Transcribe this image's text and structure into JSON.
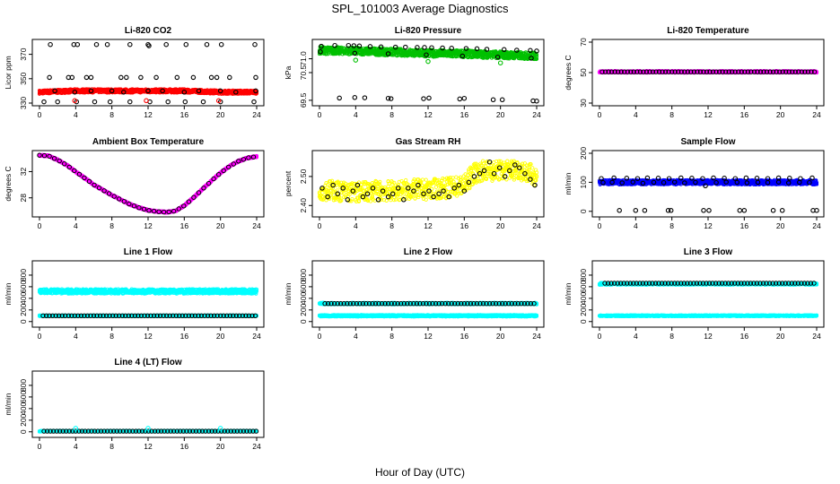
{
  "figure": {
    "title": "SPL_101003  Average Diagnostics",
    "xlabel": "Hour of Day (UTC)"
  },
  "chart_data": [
    {
      "id": "co2",
      "type": "scatter",
      "title": "Li-820 CO2",
      "ylabel": "Licor ppm",
      "xlim": [
        0,
        24
      ],
      "ylim": [
        330,
        380
      ],
      "xticks": [
        0,
        4,
        8,
        12,
        16,
        20,
        24
      ],
      "yticks": [
        330,
        350,
        370
      ],
      "series": [
        {
          "kind": "band",
          "color": "#ff0000",
          "x": [
            0,
            4,
            8,
            12,
            16,
            20,
            24
          ],
          "y": [
            339,
            340,
            340,
            340,
            340,
            339,
            339
          ],
          "spread": 1.5
        },
        {
          "kind": "points",
          "color": "#000000",
          "x": [
            1.2,
            3.8,
            4.2,
            6.3,
            7.5,
            10,
            12,
            12.1,
            14,
            16.2,
            18.5,
            20.1,
            23.8
          ],
          "y": [
            378,
            378,
            378,
            378,
            378,
            378,
            378,
            377,
            378,
            378,
            378,
            378,
            378
          ]
        },
        {
          "kind": "points",
          "color": "#000000",
          "x": [
            1.1,
            3.2,
            3.6,
            5.2,
            5.7,
            9.0,
            9.6,
            11.2,
            12.9,
            15.2,
            17.0,
            19.0,
            19.6,
            21.0,
            23.9
          ],
          "y": [
            351,
            351,
            351,
            351,
            351,
            351,
            351,
            351,
            351,
            351,
            351,
            351,
            351,
            351,
            351
          ]
        },
        {
          "kind": "points",
          "color": "#000000",
          "x": [
            0.5,
            2.0,
            4.1,
            6.1,
            7.8,
            10.0,
            12.2,
            14.2,
            16.1,
            18.1,
            20.0,
            23.7
          ],
          "y": [
            331,
            331,
            331,
            331,
            331,
            331,
            331,
            331,
            331,
            331,
            331,
            331
          ]
        },
        {
          "kind": "points",
          "color": "#000000",
          "x": [
            1.7,
            3.9,
            5.7,
            8.0,
            9.3,
            12.0,
            13.6,
            16.0,
            17.6,
            20.0,
            21.7,
            23.9
          ],
          "y": [
            340,
            339,
            340,
            340,
            339,
            340,
            340,
            339,
            340,
            340,
            339,
            340
          ]
        },
        {
          "kind": "points",
          "color": "#ff0000",
          "x": [
            3.9,
            11.8,
            19.8
          ],
          "y": [
            332,
            332,
            332
          ]
        }
      ]
    },
    {
      "id": "pressure",
      "type": "scatter",
      "title": "Li-820 Pressure",
      "ylabel": "kPa",
      "xlim": [
        0,
        24
      ],
      "ylim": [
        69.4,
        71.6
      ],
      "xticks": [
        0,
        4,
        8,
        12,
        16,
        20,
        24
      ],
      "yticks": [
        69.5,
        70.5,
        71.0
      ],
      "series": [
        {
          "kind": "band",
          "color": "#00c000",
          "x": [
            0,
            4,
            8,
            12,
            16,
            20,
            24
          ],
          "y": [
            71.3,
            71.28,
            71.24,
            71.2,
            71.18,
            71.14,
            71.1
          ],
          "spread": 0.13
        },
        {
          "kind": "points",
          "color": "#000000",
          "x": [
            0.2,
            1.7,
            3.2,
            3.8,
            4.4,
            5.6,
            6.8,
            8.4,
            9.5,
            10.8,
            11.6,
            12.4,
            13.6,
            14.6,
            16.2,
            17.4,
            18.5,
            20.4,
            21.8,
            23.3,
            24
          ],
          "y": [
            71.45,
            71.48,
            71.48,
            71.47,
            71.46,
            71.44,
            71.43,
            71.42,
            71.42,
            71.41,
            71.41,
            71.4,
            71.39,
            71.38,
            71.37,
            71.36,
            71.34,
            71.33,
            71.31,
            71.3,
            71.28
          ]
        },
        {
          "kind": "points",
          "color": "#000000",
          "x": [
            0.1,
            3.9,
            7.6,
            11.8,
            15.8,
            19.7,
            23.4
          ],
          "y": [
            71.25,
            71.2,
            71.18,
            71.14,
            71.1,
            71.06,
            71.02
          ]
        },
        {
          "kind": "points",
          "color": "#000000",
          "x": [
            2.2,
            3.9,
            5.0,
            7.6,
            7.9,
            11.5,
            12.1,
            15.5,
            16.0,
            19.2,
            20.2,
            23.6,
            24
          ],
          "y": [
            69.58,
            69.6,
            69.59,
            69.57,
            69.56,
            69.56,
            69.58,
            69.55,
            69.57,
            69.52,
            69.52,
            69.48,
            69.47
          ]
        },
        {
          "kind": "points",
          "color": "#00c000",
          "x": [
            4.0,
            12.0,
            20.0
          ],
          "y": [
            70.95,
            70.9,
            70.85
          ]
        }
      ]
    },
    {
      "id": "temperature",
      "type": "scatter",
      "title": "Li-820 Temperature",
      "ylabel": "degrees C",
      "xlim": [
        0,
        24
      ],
      "ylim": [
        30,
        70
      ],
      "xticks": [
        0,
        4,
        8,
        12,
        16,
        20,
        24
      ],
      "yticks": [
        30,
        50,
        70
      ],
      "series": [
        {
          "kind": "band",
          "color": "#ff00ff",
          "x": [
            0,
            24
          ],
          "y": [
            50.5,
            50.5
          ],
          "spread": 0.6
        },
        {
          "kind": "dense",
          "color": "#000000",
          "x0": 0.3,
          "x1": 24,
          "step": 0.35,
          "y": [
            50.5
          ]
        }
      ]
    },
    {
      "id": "ambient",
      "type": "scatter",
      "title": "Ambient Box Temperature",
      "ylabel": "degrees C",
      "xlim": [
        0,
        24
      ],
      "ylim": [
        25.5,
        34.8
      ],
      "xticks": [
        0,
        4,
        8,
        12,
        16,
        20,
        24
      ],
      "yticks": [
        28,
        32
      ],
      "series": [
        {
          "kind": "band",
          "color": "#ff00ff",
          "x": [
            0,
            1,
            2,
            3,
            4,
            5,
            6,
            7,
            8,
            9,
            10,
            11,
            12,
            13,
            14,
            15,
            16,
            17,
            18,
            19,
            20,
            21,
            22,
            23,
            24
          ],
          "y": [
            34.5,
            34.4,
            33.8,
            33.0,
            32.0,
            31.0,
            30.0,
            29.2,
            28.4,
            27.7,
            27.0,
            26.5,
            26.1,
            25.9,
            25.8,
            26.0,
            26.8,
            28.0,
            29.3,
            30.6,
            31.8,
            32.8,
            33.6,
            34.1,
            34.3
          ],
          "spread": 0.12
        },
        {
          "kind": "curvepts",
          "color": "#000000",
          "x": [
            0,
            1,
            2,
            3,
            4,
            5,
            6,
            7,
            8,
            9,
            10,
            11,
            12,
            13,
            14,
            15,
            16,
            17,
            18,
            19,
            20,
            21,
            22,
            23,
            24
          ],
          "y": [
            34.5,
            34.4,
            33.8,
            33.0,
            32.0,
            31.0,
            30.0,
            29.2,
            28.4,
            27.7,
            27.0,
            26.5,
            26.1,
            25.9,
            25.8,
            26.0,
            26.8,
            28.0,
            29.3,
            30.6,
            31.8,
            32.8,
            33.6,
            34.1,
            34.3
          ],
          "step": 0.55
        }
      ]
    },
    {
      "id": "rh",
      "type": "scatter",
      "title": "Gas Stream RH",
      "ylabel": "percent",
      "xlim": [
        0,
        24
      ],
      "ylim": [
        2.37,
        2.58
      ],
      "xticks": [
        0,
        4,
        8,
        12,
        16,
        20,
        24
      ],
      "yticks": [
        2.4,
        2.5
      ],
      "series": [
        {
          "kind": "noisy",
          "color": "#ffff00",
          "x": [
            0,
            2,
            4,
            6,
            8,
            10,
            12,
            14,
            16,
            17,
            18,
            20,
            22,
            24
          ],
          "y": [
            2.455,
            2.45,
            2.445,
            2.45,
            2.45,
            2.455,
            2.455,
            2.46,
            2.47,
            2.51,
            2.52,
            2.52,
            2.525,
            2.5
          ],
          "spread": 0.035
        },
        {
          "kind": "points",
          "color": "#000000",
          "x": [
            0.3,
            0.9,
            1.5,
            2.0,
            2.6,
            3.1,
            3.7,
            4.2,
            4.8,
            5.3,
            5.9,
            6.5,
            7.0,
            7.6,
            8.1,
            8.7,
            9.3,
            9.8,
            10.4,
            10.9,
            11.5,
            12.1,
            12.6,
            13.2,
            13.7,
            14.3,
            14.9,
            15.4,
            16.0,
            16.5,
            17.1,
            17.7,
            18.2,
            18.8,
            19.3,
            19.9,
            20.5,
            21.0,
            21.6,
            22.1,
            22.7,
            23.3,
            23.8
          ],
          "y": [
            2.46,
            2.43,
            2.47,
            2.44,
            2.46,
            2.42,
            2.45,
            2.47,
            2.43,
            2.44,
            2.46,
            2.42,
            2.45,
            2.43,
            2.44,
            2.46,
            2.42,
            2.46,
            2.45,
            2.47,
            2.44,
            2.45,
            2.43,
            2.44,
            2.45,
            2.43,
            2.46,
            2.47,
            2.45,
            2.48,
            2.5,
            2.51,
            2.52,
            2.55,
            2.51,
            2.53,
            2.5,
            2.52,
            2.54,
            2.53,
            2.51,
            2.49,
            2.47
          ]
        }
      ]
    },
    {
      "id": "sample",
      "type": "scatter",
      "title": "Sample Flow",
      "ylabel": "ml/min",
      "xlim": [
        0,
        24
      ],
      "ylim": [
        -10,
        200
      ],
      "xticks": [
        0,
        4,
        8,
        12,
        16,
        20,
        24
      ],
      "yticks": [
        0,
        100,
        200
      ],
      "series": [
        {
          "kind": "band",
          "color": "#0000ff",
          "x": [
            0,
            24
          ],
          "y": [
            100,
            100
          ],
          "spread": 8
        },
        {
          "kind": "points",
          "color": "#000000",
          "x": [
            0.2,
            1.6,
            3.0,
            4.2,
            5.3,
            6.5,
            7.7,
            9.0,
            10.2,
            11.4,
            12.6,
            13.8,
            15.0,
            16.2,
            17.4,
            18.6,
            19.8,
            21.0,
            22.2,
            23.5
          ],
          "y": [
            113,
            115,
            114,
            113,
            115,
            114,
            113,
            115,
            114,
            113,
            115,
            114,
            113,
            115,
            114,
            113,
            115,
            114,
            113,
            115
          ]
        },
        {
          "kind": "points",
          "color": "#000000",
          "x": [
            2.2,
            4.0,
            5.0,
            7.6,
            7.9,
            11.5,
            12.1,
            15.5,
            16.0,
            19.2,
            20.2,
            23.6,
            24
          ],
          "y": [
            3,
            3,
            3,
            3,
            3,
            3,
            3,
            3,
            3,
            3,
            3,
            3,
            3
          ]
        },
        {
          "kind": "points",
          "color": "#000000",
          "x": [
            0.4,
            1.4,
            2.5,
            3.7,
            4.8,
            6.0,
            7.1,
            8.3,
            9.4,
            10.6,
            11.7,
            12.9,
            14.0,
            15.2,
            16.3,
            17.5,
            18.6,
            19.8,
            20.9,
            22.1,
            23.2
          ],
          "y": [
            99,
            100,
            98,
            101,
            97,
            100,
            99,
            101,
            98,
            100,
            88,
            99,
            101,
            100,
            98,
            100,
            99,
            101,
            98,
            100,
            99
          ]
        }
      ]
    },
    {
      "id": "line1",
      "type": "scatter",
      "title": "Line 1 Flow",
      "ylabel": "ml/min",
      "xlim": [
        0,
        24
      ],
      "ylim": [
        -50,
        1000
      ],
      "xticks": [
        0,
        4,
        8,
        12,
        16,
        20,
        24
      ],
      "yticks": [
        0,
        200,
        400,
        600,
        800
      ],
      "series": [
        {
          "kind": "band",
          "color": "#00ffff",
          "x": [
            0,
            24
          ],
          "y": [
            520,
            520
          ],
          "spread": 40
        },
        {
          "kind": "band",
          "color": "#00ffff",
          "x": [
            0,
            24
          ],
          "y": [
            100,
            100
          ],
          "spread": 8
        },
        {
          "kind": "dense",
          "color": "#000000",
          "x0": 0.4,
          "x1": 24,
          "step": 0.35,
          "y": [
            100
          ]
        }
      ]
    },
    {
      "id": "line2",
      "type": "scatter",
      "title": "Line 2 Flow",
      "ylabel": "ml/min",
      "xlim": [
        0,
        24
      ],
      "ylim": [
        -50,
        1000
      ],
      "xticks": [
        0,
        4,
        8,
        12,
        16,
        20,
        24
      ],
      "yticks": [
        0,
        200,
        400,
        600,
        800
      ],
      "series": [
        {
          "kind": "band",
          "color": "#00ffff",
          "x": [
            0,
            24
          ],
          "y": [
            310,
            310
          ],
          "spread": 15
        },
        {
          "kind": "band",
          "color": "#00ffff",
          "x": [
            0,
            24
          ],
          "y": [
            100,
            100
          ],
          "spread": 15
        },
        {
          "kind": "dense",
          "color": "#000000",
          "x0": 0.6,
          "x1": 24,
          "step": 0.35,
          "y": [
            310
          ]
        }
      ]
    },
    {
      "id": "line3",
      "type": "scatter",
      "title": "Line 3 Flow",
      "ylabel": "ml/min",
      "xlim": [
        0,
        24
      ],
      "ylim": [
        -50,
        1000
      ],
      "xticks": [
        0,
        4,
        8,
        12,
        16,
        20,
        24
      ],
      "yticks": [
        0,
        200,
        400,
        600,
        800
      ],
      "series": [
        {
          "kind": "band",
          "color": "#00ffff",
          "x": [
            0,
            24
          ],
          "y": [
            650,
            650
          ],
          "spread": 18
        },
        {
          "kind": "band",
          "color": "#00ffff",
          "x": [
            0,
            24
          ],
          "y": [
            100,
            100
          ],
          "spread": 10
        },
        {
          "kind": "dense",
          "color": "#000000",
          "x0": 0.6,
          "x1": 24,
          "step": 0.35,
          "y": [
            660
          ]
        }
      ]
    },
    {
      "id": "line4",
      "type": "scatter",
      "title": "Line 4 (LT) Flow",
      "ylabel": "ml/min",
      "xlim": [
        0,
        24
      ],
      "ylim": [
        -50,
        1000
      ],
      "xticks": [
        0,
        4,
        8,
        12,
        16,
        20,
        24
      ],
      "yticks": [
        0,
        200,
        400,
        600,
        800
      ],
      "series": [
        {
          "kind": "band",
          "color": "#00ffff",
          "x": [
            0,
            24
          ],
          "y": [
            10,
            10
          ],
          "spread": 8
        },
        {
          "kind": "dense",
          "color": "#000000",
          "x0": 0.5,
          "x1": 24,
          "step": 0.35,
          "y": [
            10
          ]
        },
        {
          "kind": "points",
          "color": "#00ffff",
          "x": [
            4.0,
            12.0,
            20.0
          ],
          "y": [
            60,
            60,
            60
          ]
        }
      ]
    }
  ]
}
